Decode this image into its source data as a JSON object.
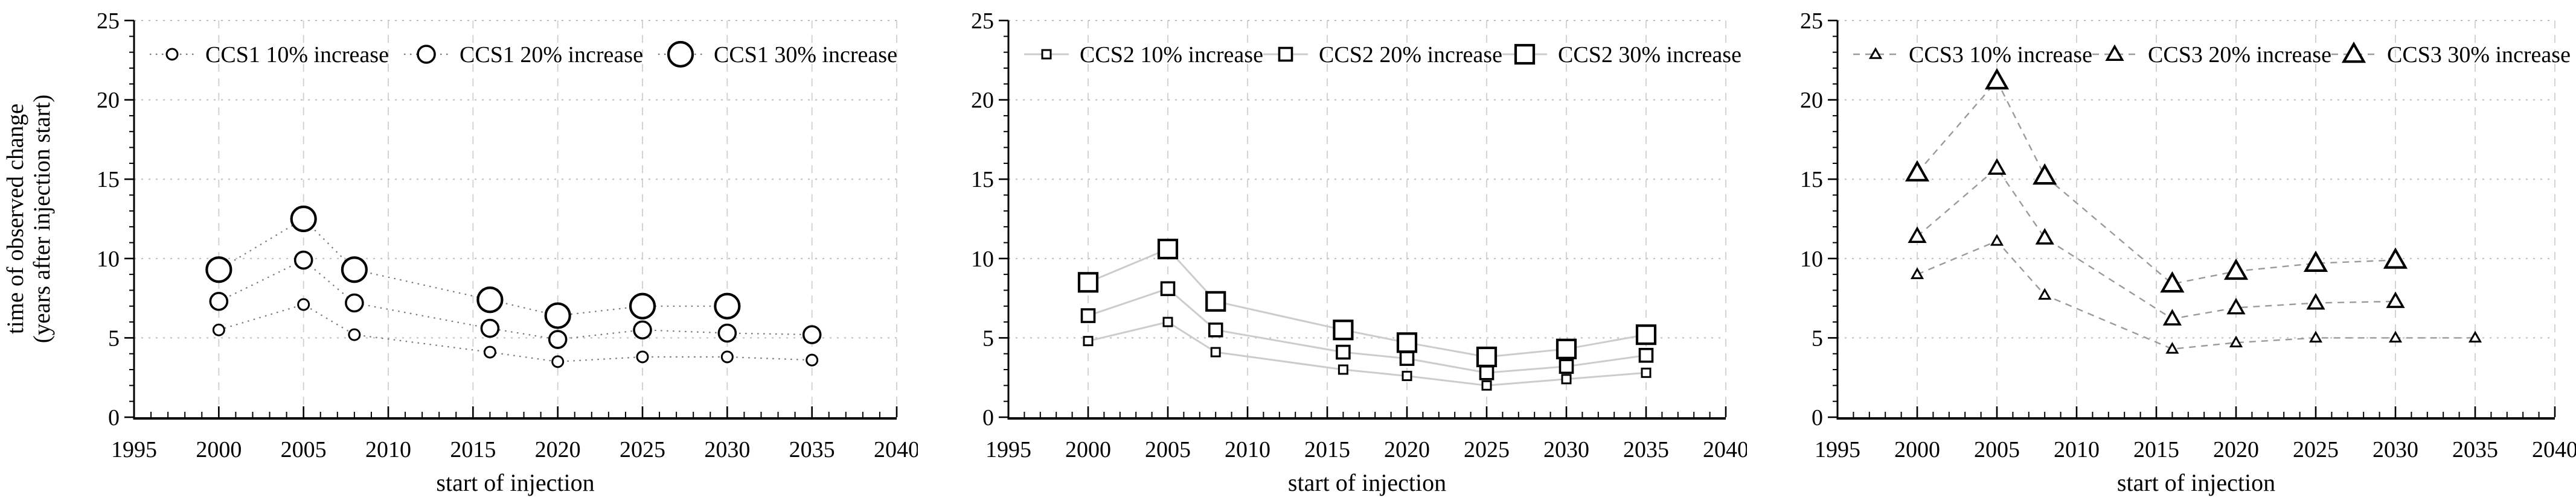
{
  "figure": {
    "x_axis_title": "start of injection",
    "y_axis_title_line1": "time of observed change",
    "y_axis_title_line2": "(years after injection start)",
    "x_tick_labels": [
      1995,
      2000,
      2005,
      2010,
      2015,
      2020,
      2025,
      2030,
      2035,
      2040
    ],
    "y_tick_labels": [
      0,
      5,
      10,
      15,
      20,
      25
    ],
    "xlim": [
      1995,
      2040
    ],
    "ylim": [
      0,
      25
    ],
    "x_minor_step": 1,
    "y_minor_step": 1,
    "grid": "on",
    "legend_position": "top-inside-row",
    "colors": {
      "axis": "#000000",
      "marker_stroke": "#000000",
      "marker_fill": "#ffffff",
      "h_grid": "#bdbdbd",
      "v_grid": "#cfcfcf",
      "ccs1_line": "#777777",
      "ccs2_line": "#cccccc",
      "ccs3_line": "#9a9a9a"
    }
  },
  "chart_data": [
    {
      "type": "line",
      "site": "CCS1",
      "marker": "circle",
      "line_style": "dotted",
      "line_color": "#777777",
      "xlabel": "start of injection",
      "ylabel": "time of observed change (years after injection start)",
      "xlim": [
        1995,
        2040
      ],
      "ylim": [
        0,
        25
      ],
      "x": [
        2000,
        2005,
        2008,
        2016,
        2020,
        2025,
        2030,
        2035
      ],
      "series": [
        {
          "name": "CCS1 10% increase",
          "size": "small",
          "values": [
            5.5,
            7.1,
            5.2,
            4.1,
            3.5,
            3.8,
            3.8,
            3.6
          ]
        },
        {
          "name": "CCS1 20% increase",
          "size": "medium",
          "values": [
            7.3,
            9.9,
            7.2,
            5.6,
            4.9,
            5.5,
            5.3,
            5.2
          ]
        },
        {
          "name": "CCS1 30% increase",
          "size": "large",
          "values": [
            9.3,
            12.5,
            9.3,
            7.4,
            6.4,
            7.0,
            7.0,
            null
          ]
        }
      ]
    },
    {
      "type": "line",
      "site": "CCS2",
      "marker": "square",
      "line_style": "solid",
      "line_color": "#cccccc",
      "xlabel": "start of injection",
      "ylabel": "time of observed change (years after injection start)",
      "xlim": [
        1995,
        2040
      ],
      "ylim": [
        0,
        25
      ],
      "x": [
        2000,
        2005,
        2008,
        2016,
        2020,
        2025,
        2030,
        2035
      ],
      "series": [
        {
          "name": "CCS2 10% increase",
          "size": "small",
          "values": [
            4.8,
            6.0,
            4.1,
            3.0,
            2.6,
            2.0,
            2.4,
            2.8
          ]
        },
        {
          "name": "CCS2 20% increase",
          "size": "medium",
          "values": [
            6.4,
            8.1,
            5.5,
            4.1,
            3.7,
            2.8,
            3.2,
            3.9
          ]
        },
        {
          "name": "CCS2 30% increase",
          "size": "large",
          "values": [
            8.5,
            10.6,
            7.3,
            5.5,
            4.7,
            3.8,
            4.3,
            5.2
          ]
        }
      ]
    },
    {
      "type": "line",
      "site": "CCS3",
      "marker": "triangle",
      "line_style": "dashed",
      "line_color": "#9a9a9a",
      "xlabel": "start of injection",
      "ylabel": "time of observed change (years after injection start)",
      "xlim": [
        1995,
        2040
      ],
      "ylim": [
        0,
        25
      ],
      "x": [
        2000,
        2005,
        2008,
        2016,
        2020,
        2025,
        2030,
        2035
      ],
      "series": [
        {
          "name": "CCS3 10% increase",
          "size": "small",
          "values": [
            9.0,
            11.1,
            7.7,
            4.3,
            4.7,
            5.0,
            5.0,
            5.0
          ]
        },
        {
          "name": "CCS3 20% increase",
          "size": "medium",
          "values": [
            11.4,
            15.7,
            11.3,
            6.2,
            6.9,
            7.2,
            7.3,
            null
          ]
        },
        {
          "name": "CCS3 30% increase",
          "size": "large",
          "values": [
            15.4,
            21.2,
            15.2,
            8.4,
            9.2,
            9.7,
            9.9,
            null
          ]
        }
      ]
    }
  ]
}
